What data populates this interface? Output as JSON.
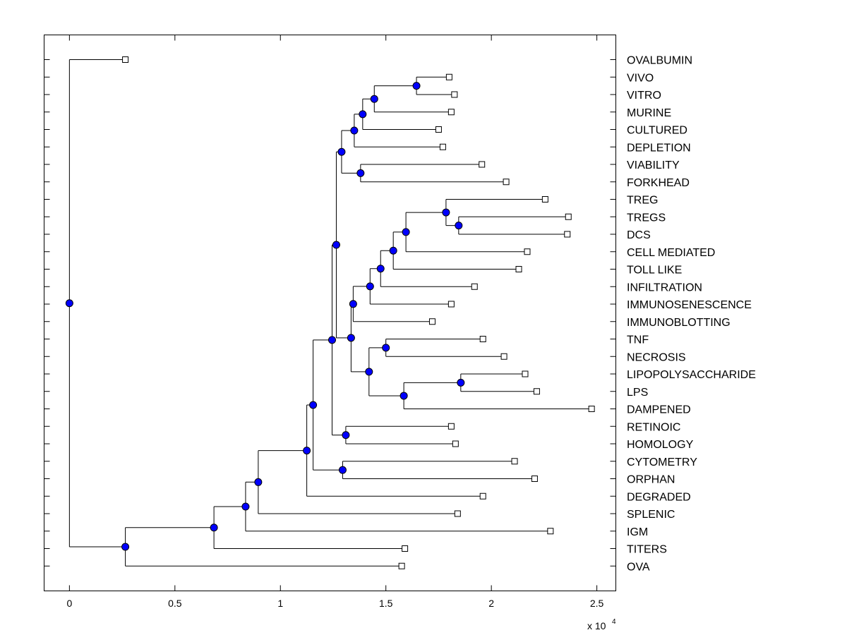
{
  "chart_data": {
    "type": "dendrogram",
    "title": "",
    "xlabel": "",
    "ylabel": "",
    "x_scale_label": "x 10",
    "x_scale_exponent": "4",
    "xlim": [
      -0.12,
      2.59
    ],
    "xticks": [
      0,
      0.5,
      1,
      1.5,
      2,
      2.5
    ],
    "xtick_labels": [
      "0",
      "0.5",
      "1",
      "1.5",
      "2",
      "2.5"
    ],
    "colors": {
      "node": "#0000ff",
      "leaf": "#ffffff",
      "line": "#000000"
    },
    "leaves": [
      {
        "label": "OVALBUMIN",
        "value": 0.265
      },
      {
        "label": "VIVO",
        "value": 1.8
      },
      {
        "label": "VITRO",
        "value": 1.825
      },
      {
        "label": "MURINE",
        "value": 1.81
      },
      {
        "label": "CULTURED",
        "value": 1.75
      },
      {
        "label": "DEPLETION",
        "value": 1.77
      },
      {
        "label": "VIABILITY",
        "value": 1.955
      },
      {
        "label": "FORKHEAD",
        "value": 2.07
      },
      {
        "label": "TREG",
        "value": 2.255
      },
      {
        "label": "TREGS",
        "value": 2.365
      },
      {
        "label": "DCS",
        "value": 2.36
      },
      {
        "label": "CELL MEDIATED",
        "value": 2.17
      },
      {
        "label": "TOLL LIKE",
        "value": 2.13
      },
      {
        "label": "INFILTRATION",
        "value": 1.92
      },
      {
        "label": "IMMUNOSENESCENCE",
        "value": 1.81
      },
      {
        "label": "IMMUNOBLOTTING",
        "value": 1.72
      },
      {
        "label": "TNF",
        "value": 1.96
      },
      {
        "label": "NECROSIS",
        "value": 2.06
      },
      {
        "label": "LIPOPOLYSACCHARIDE",
        "value": 2.16
      },
      {
        "label": "LPS",
        "value": 2.215
      },
      {
        "label": "DAMPENED",
        "value": 2.475
      },
      {
        "label": "RETINOIC",
        "value": 1.81
      },
      {
        "label": "HOMOLOGY",
        "value": 1.83
      },
      {
        "label": "CYTOMETRY",
        "value": 2.11
      },
      {
        "label": "ORPHAN",
        "value": 2.205
      },
      {
        "label": "DEGRADED",
        "value": 1.96
      },
      {
        "label": "SPLENIC",
        "value": 1.84
      },
      {
        "label": "IGM",
        "value": 2.28
      },
      {
        "label": "TITERS",
        "value": 1.59
      },
      {
        "label": "OVA",
        "value": 1.575
      }
    ],
    "nodes": [
      {
        "id": "n0",
        "value": 0,
        "children": [
          "L0",
          "n1"
        ]
      },
      {
        "id": "n1",
        "value": 0.265,
        "children": [
          "n2",
          "L29"
        ]
      },
      {
        "id": "n2",
        "value": 0.685,
        "children": [
          "n3",
          "L28"
        ]
      },
      {
        "id": "n3",
        "value": 0.835,
        "children": [
          "n4",
          "L27"
        ]
      },
      {
        "id": "n4",
        "value": 0.895,
        "children": [
          "n5",
          "L26"
        ]
      },
      {
        "id": "n5",
        "value": 1.125,
        "children": [
          "n6",
          "L25"
        ]
      },
      {
        "id": "n6",
        "value": 1.155,
        "children": [
          "n7",
          "n23"
        ]
      },
      {
        "id": "n7",
        "value": 1.245,
        "children": [
          "n8",
          "n22"
        ]
      },
      {
        "id": "n8",
        "value": 1.265,
        "children": [
          "n9",
          "n14"
        ]
      },
      {
        "id": "n9",
        "value": 1.29,
        "children": [
          "n10",
          "n13"
        ]
      },
      {
        "id": "n10",
        "value": 1.35,
        "children": [
          "n11",
          "L5"
        ]
      },
      {
        "id": "n11",
        "value": 1.39,
        "children": [
          "n12",
          "L4"
        ]
      },
      {
        "id": "n12",
        "value": 1.445,
        "children": [
          "n24",
          "L3"
        ]
      },
      {
        "id": "n24",
        "value": 1.645,
        "children": [
          "L1",
          "L2"
        ]
      },
      {
        "id": "n13",
        "value": 1.38,
        "children": [
          "L6",
          "L7"
        ]
      },
      {
        "id": "n14",
        "value": 1.335,
        "children": [
          "n15",
          "n19"
        ]
      },
      {
        "id": "n15",
        "value": 1.345,
        "children": [
          "n16",
          "L15"
        ]
      },
      {
        "id": "n16",
        "value": 1.425,
        "children": [
          "n17",
          "L14"
        ]
      },
      {
        "id": "n17",
        "value": 1.475,
        "children": [
          "n18",
          "L13"
        ]
      },
      {
        "id": "n18",
        "value": 1.535,
        "children": [
          "n25",
          "L12"
        ]
      },
      {
        "id": "n25",
        "value": 1.595,
        "children": [
          "n26",
          "L11"
        ]
      },
      {
        "id": "n26",
        "value": 1.785,
        "children": [
          "L8",
          "n27"
        ]
      },
      {
        "id": "n27",
        "value": 1.845,
        "children": [
          "L9",
          "L10"
        ]
      },
      {
        "id": "n19",
        "value": 1.42,
        "children": [
          "n20",
          "n21"
        ]
      },
      {
        "id": "n20",
        "value": 1.5,
        "children": [
          "L16",
          "L17"
        ]
      },
      {
        "id": "n21",
        "value": 1.585,
        "children": [
          "n28",
          "L20"
        ]
      },
      {
        "id": "n28",
        "value": 1.855,
        "children": [
          "L18",
          "L19"
        ]
      },
      {
        "id": "n22",
        "value": 1.31,
        "children": [
          "L21",
          "L22"
        ]
      },
      {
        "id": "n23",
        "value": 1.295,
        "children": [
          "L23",
          "L24"
        ]
      }
    ]
  }
}
